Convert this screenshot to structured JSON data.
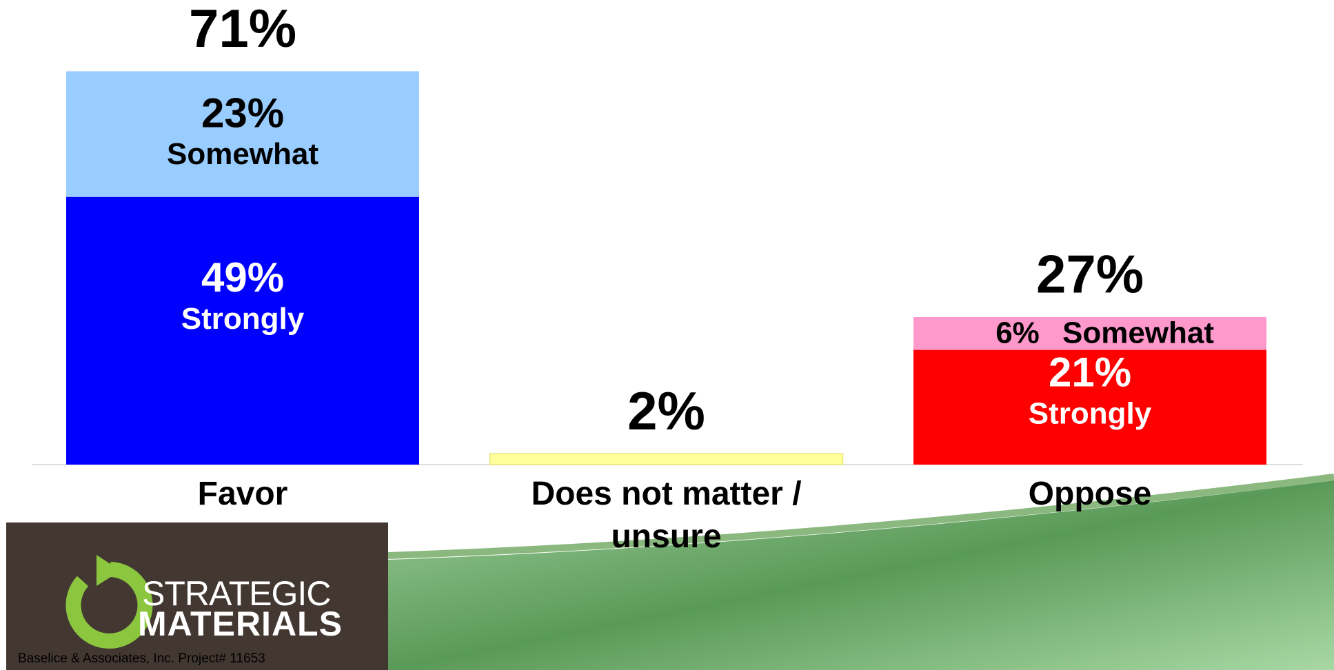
{
  "chart_data": {
    "type": "stacked_bar",
    "categories": [
      "Favor",
      "Does not matter / unsure",
      "Oppose"
    ],
    "series": [
      {
        "name": "Strongly",
        "colors": [
          "#0000ff",
          null,
          "#ff0000"
        ],
        "label_color": "#ffffff",
        "values": [
          49,
          null,
          21
        ],
        "value_labels": [
          "49%",
          null,
          "21%"
        ]
      },
      {
        "name": "Somewhat",
        "colors": [
          "#99ccff",
          null,
          "#ff99cc"
        ],
        "label_color": "#000000",
        "values": [
          23,
          null,
          6
        ],
        "value_labels": [
          "23%",
          null,
          "6%"
        ]
      },
      {
        "colors": [
          null,
          "#ffff99",
          null
        ],
        "values": [
          null,
          2,
          null
        ]
      }
    ],
    "totals": [
      71,
      2,
      27
    ],
    "total_labels": [
      "71%",
      "2%",
      "27%"
    ],
    "ylim": [
      0,
      80
    ]
  },
  "footer": {
    "logo_line1": "STRATEGIC",
    "logo_line2": "MATERIALS",
    "credit": "Baselice & Associates, Inc. Project# 11653"
  }
}
